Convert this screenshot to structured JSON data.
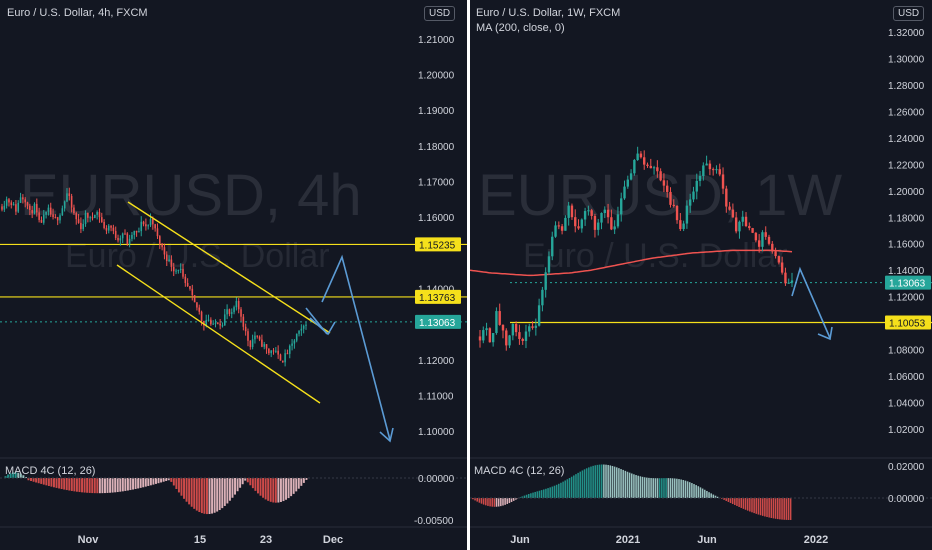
{
  "charts": [
    {
      "title": "Euro / U.S. Dollar, 4h, FXCM",
      "currency": "USD",
      "watermark": "EURUSD, 4h",
      "watermark_sub": "Euro / U.S. Dollar",
      "indicator": "MACD 4C (12, 26)",
      "colors": {
        "up": "#26a69a",
        "down": "#ef5350",
        "level": "#f5e01b",
        "channel": "#f5e01b",
        "arrow": "#5b9bd5"
      },
      "y_ticks": [
        "1.21000",
        "1.20000",
        "1.19000",
        "1.18000",
        "1.17000",
        "1.16000",
        "1.14000",
        "1.12000",
        "1.11000",
        "1.10000"
      ],
      "y_tick_values": [
        1.21,
        1.2,
        1.19,
        1.18,
        1.17,
        1.16,
        1.14,
        1.12,
        1.11,
        1.1
      ],
      "x_ticks": [
        "Nov",
        "15",
        "23",
        "Dec"
      ],
      "levels": [
        {
          "value": 1.15235,
          "label": "1.15235",
          "kind": "level"
        },
        {
          "value": 1.13763,
          "label": "1.13763",
          "kind": "level"
        },
        {
          "value": 1.13063,
          "label": "1.13063",
          "kind": "current"
        }
      ],
      "macd_ticks": [
        "0.00000",
        "-0.00500"
      ]
    },
    {
      "title": "Euro / U.S. Dollar, 1W, FXCM",
      "subtitle": "MA (200, close, 0)",
      "currency": "USD",
      "watermark": "EURUSD, 1W",
      "watermark_sub": "Euro / U.S. Dollar",
      "indicator": "MACD 4C (12, 26)",
      "colors": {
        "up": "#26a69a",
        "down": "#ef5350",
        "level": "#f5e01b",
        "ma": "#ef5350",
        "arrow": "#5b9bd5"
      },
      "y_ticks": [
        "1.32000",
        "1.30000",
        "1.28000",
        "1.26000",
        "1.24000",
        "1.22000",
        "1.20000",
        "1.18000",
        "1.16000",
        "1.14000",
        "1.12000",
        "1.08000",
        "1.06000",
        "1.04000",
        "1.02000"
      ],
      "y_tick_values": [
        1.32,
        1.3,
        1.28,
        1.26,
        1.24,
        1.22,
        1.2,
        1.18,
        1.16,
        1.14,
        1.12,
        1.08,
        1.06,
        1.04,
        1.02
      ],
      "x_ticks": [
        "Jun",
        "2021",
        "Jun",
        "2022"
      ],
      "levels": [
        {
          "value": 1.13063,
          "label": "1.13063",
          "kind": "current"
        },
        {
          "value": 1.10053,
          "label": "1.10053",
          "kind": "level"
        }
      ],
      "macd_ticks": [
        "0.02000",
        "0.00000"
      ]
    }
  ],
  "chart_data": [
    {
      "type": "candlestick",
      "title": "Euro / U.S. Dollar, 4h, FXCM",
      "ylim": [
        1.095,
        1.225
      ],
      "close_path": [
        1.163,
        1.165,
        1.164,
        1.162,
        1.166,
        1.165,
        1.161,
        1.163,
        1.158,
        1.16,
        1.162,
        1.159,
        1.16,
        1.163,
        1.167,
        1.162,
        1.159,
        1.157,
        1.161,
        1.159,
        1.162,
        1.16,
        1.156,
        1.158,
        1.155,
        1.154,
        1.156,
        1.152,
        1.156,
        1.155,
        1.159,
        1.157,
        1.16,
        1.155,
        1.152,
        1.149,
        1.147,
        1.145,
        1.146,
        1.141,
        1.14,
        1.136,
        1.134,
        1.13,
        1.132,
        1.129,
        1.131,
        1.13,
        1.134,
        1.132,
        1.136,
        1.133,
        1.128,
        1.124,
        1.127,
        1.125,
        1.124,
        1.122,
        1.123,
        1.121,
        1.12,
        1.122,
        1.124,
        1.127,
        1.128,
        1.13063
      ],
      "macd_sign_path": [
        1,
        1,
        1,
        1,
        1,
        1,
        1,
        -1,
        -1,
        -1,
        -1,
        -1,
        -1,
        -1,
        -1,
        -1,
        -1,
        -1,
        -1,
        -1,
        -1,
        -1,
        -1,
        -1,
        -1,
        -1,
        -1,
        -1,
        -1,
        -1,
        -1,
        -1,
        -1,
        -1,
        -1,
        -1,
        -1,
        -1,
        -1,
        -1,
        -1,
        -1,
        -1,
        -1,
        -1,
        -1,
        -1,
        -1,
        -1,
        -1,
        -1,
        -1,
        -1,
        -1,
        -1,
        -1,
        -1,
        -1,
        -1,
        -1,
        -1,
        -1,
        -1,
        -1,
        -1,
        -1
      ]
    },
    {
      "type": "candlestick",
      "title": "Euro / U.S. Dollar, 1W, FXCM",
      "ylim": [
        1.005,
        1.335
      ],
      "ma200_label": "MA (200, close, 0)",
      "close_path": [
        1.09,
        1.1,
        1.085,
        1.11,
        1.095,
        1.08,
        1.1,
        1.09,
        1.085,
        1.1,
        1.09,
        1.12,
        1.14,
        1.16,
        1.18,
        1.17,
        1.19,
        1.18,
        1.17,
        1.18,
        1.19,
        1.17,
        1.18,
        1.19,
        1.17,
        1.18,
        1.2,
        1.21,
        1.22,
        1.23,
        1.22,
        1.215,
        1.22,
        1.21,
        1.2,
        1.19,
        1.18,
        1.17,
        1.19,
        1.2,
        1.21,
        1.22,
        1.215,
        1.22,
        1.21,
        1.19,
        1.18,
        1.17,
        1.18,
        1.17,
        1.165,
        1.16,
        1.17,
        1.16,
        1.15,
        1.14,
        1.13,
        1.13063
      ],
      "ma200_path": [
        1.14,
        1.138,
        1.137,
        1.136,
        1.137,
        1.138,
        1.14,
        1.143,
        1.146,
        1.149,
        1.151,
        1.153,
        1.154,
        1.155,
        1.155,
        1.155,
        1.154
      ]
    }
  ]
}
